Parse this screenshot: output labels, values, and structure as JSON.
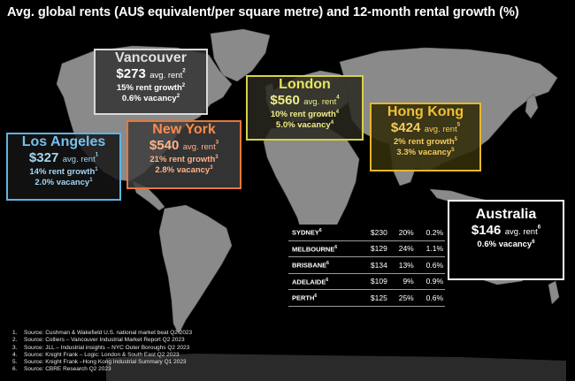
{
  "title": "Avg. global rents (AU$ equivalent/per square metre) and 12-month rental growth (%)",
  "cities": {
    "vancouver": {
      "name": "Vancouver",
      "rent": "$273",
      "rent_label": "avg. rent",
      "note_rent": "2",
      "growth": "15% rent growth",
      "note_growth": "2",
      "vacancy": "0.6% vacancy",
      "note_vacancy": "2"
    },
    "los_angeles": {
      "name": "Los Angeles",
      "rent": "$327",
      "rent_label": "avg. rent",
      "note_rent": "1",
      "growth": "14% rent growth",
      "note_growth": "1",
      "vacancy": "2.0% vacancy",
      "note_vacancy": "1"
    },
    "new_york": {
      "name": "New York",
      "rent": "$540",
      "rent_label": "avg. rent",
      "note_rent": "3",
      "growth": "21% rent growth",
      "note_growth": "3",
      "vacancy": "2.8% vacancy",
      "note_vacancy": "3"
    },
    "london": {
      "name": "London",
      "rent": "$560",
      "rent_label": "avg. rent",
      "note_rent": "4",
      "growth": "10% rent growth",
      "note_growth": "4",
      "vacancy": "5.0% vacancy",
      "note_vacancy": "4"
    },
    "hong_kong": {
      "name": "Hong Kong",
      "rent": "$424",
      "rent_label": "avg. rent",
      "note_rent": "5",
      "growth": "2% rent growth",
      "note_growth": "5",
      "vacancy": "3.3% vacancy",
      "note_vacancy": "5"
    },
    "australia": {
      "name": "Australia",
      "rent": "$146",
      "rent_label": "avg. rent",
      "note_rent": "6",
      "vacancy": "0.6% vacancy",
      "note_vacancy": "6"
    }
  },
  "australia_table": [
    {
      "city": "SYDNEY",
      "note": "6",
      "rent": "$230",
      "growth": "20%",
      "vacancy": "0.2%"
    },
    {
      "city": "MELBOURNE",
      "note": "6",
      "rent": "$129",
      "growth": "24%",
      "vacancy": "1.1%"
    },
    {
      "city": "BRISBANE",
      "note": "6",
      "rent": "$134",
      "growth": "13%",
      "vacancy": "0.6%"
    },
    {
      "city": "ADELAIDE",
      "note": "6",
      "rent": "$109",
      "growth": "9%",
      "vacancy": "0.9%"
    },
    {
      "city": "PERTH",
      "note": "6",
      "rent": "$125",
      "growth": "25%",
      "vacancy": "0.6%"
    }
  ],
  "sources": [
    {
      "num": "1.",
      "text": "Source: Cushman & Wakefield U.S. national market beat Q2 2023"
    },
    {
      "num": "2.",
      "text": "Source: Colliers – Vancouver Industrial Market Report Q2 2023"
    },
    {
      "num": "3.",
      "text": "Source: JLL – Industrial insights – NYC Outer Boroughs  Q2 2023"
    },
    {
      "num": "4.",
      "text": "Source: Knight Frank – Logic: London & South East Q2 2023"
    },
    {
      "num": "5.",
      "text": "Source: Knight Frank –Hong Kong Industrial Summary Q1 2023"
    },
    {
      "num": "6.",
      "text": "Source: CBRE Research Q2 2023"
    }
  ],
  "colors": {
    "background": "#000000",
    "land": "#8c8c8c",
    "vancouver": "#d9d9d9",
    "los_angeles": "#5fb3e3",
    "new_york": "#e8763a",
    "london": "#d6d24a",
    "hong_kong": "#e6b72d",
    "australia": "#ffffff"
  }
}
